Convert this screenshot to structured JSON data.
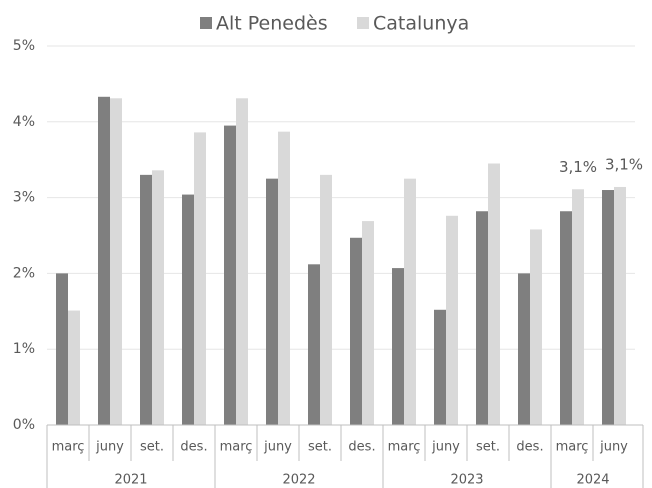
{
  "chart_data": {
    "type": "bar",
    "groups": [
      {
        "name": "2021",
        "categories": [
          "març",
          "juny",
          "set.",
          "des."
        ]
      },
      {
        "name": "2022",
        "categories": [
          "març",
          "juny",
          "set.",
          "des."
        ]
      },
      {
        "name": "2023",
        "categories": [
          "març",
          "juny",
          "set.",
          "des."
        ]
      },
      {
        "name": "2024",
        "categories": [
          "març",
          "juny"
        ]
      }
    ],
    "series": [
      {
        "name": "Alt Penedès",
        "color": "#7f7f7f",
        "values": [
          2.0,
          4.33,
          3.3,
          3.04,
          3.95,
          3.25,
          2.12,
          2.47,
          2.07,
          1.52,
          2.82,
          2.0,
          2.82,
          3.1
        ]
      },
      {
        "name": "Catalunya",
        "color": "#d9d9d9",
        "values": [
          1.51,
          4.31,
          3.36,
          3.86,
          4.31,
          3.87,
          3.3,
          2.69,
          3.25,
          2.76,
          3.45,
          2.58,
          3.11,
          3.14
        ],
        "value_labels": [
          null,
          null,
          null,
          null,
          null,
          null,
          null,
          null,
          null,
          null,
          null,
          null,
          "3,1%",
          "3,1%"
        ]
      }
    ],
    "ylim": [
      0,
      5
    ],
    "yticks": [
      {
        "value": 0,
        "label": "0%"
      },
      {
        "value": 1,
        "label": "1%"
      },
      {
        "value": 2,
        "label": "2%"
      },
      {
        "value": 3,
        "label": "3%"
      },
      {
        "value": 4,
        "label": "4%"
      },
      {
        "value": 5,
        "label": "5%"
      }
    ],
    "grid": true,
    "legend": "top"
  }
}
